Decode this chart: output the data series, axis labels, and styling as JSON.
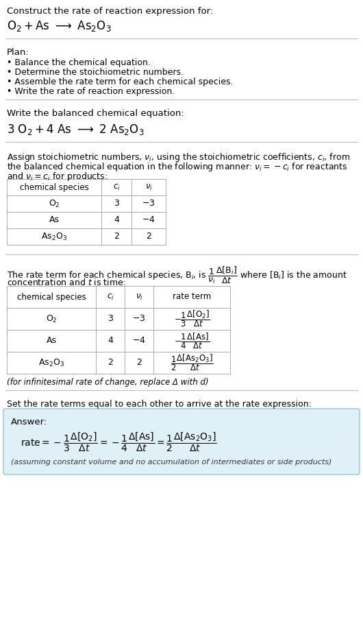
{
  "bg_color": "#ffffff",
  "text_color": "#000000",
  "section1_bullets": [
    "• Balance the chemical equation.",
    "• Determine the stoichiometric numbers.",
    "• Assemble the rate term for each chemical species.",
    "• Write the rate of reaction expression."
  ],
  "infinitesimal_note": "(for infinitesimal rate of change, replace Δ with d)",
  "section5_title": "Set the rate terms equal to each other to arrive at the rate expression:",
  "answer_box_color": "#dff0f7",
  "answer_box_border": "#90c4d8",
  "answer_label": "Answer:",
  "answer_footnote": "(assuming constant volume and no accumulation of intermediates or side products)"
}
